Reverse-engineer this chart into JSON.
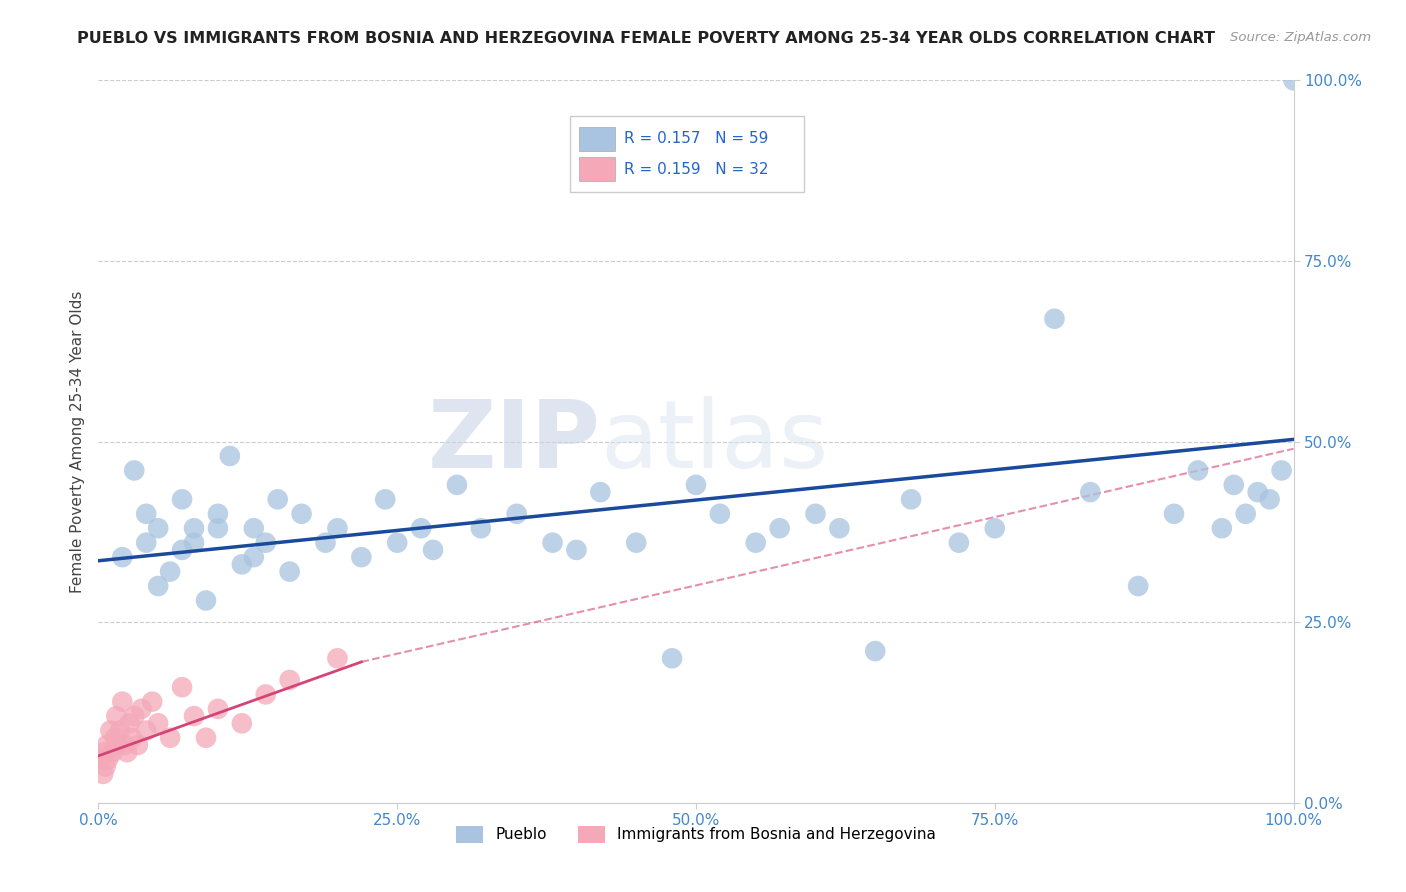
{
  "title": "PUEBLO VS IMMIGRANTS FROM BOSNIA AND HERZEGOVINA FEMALE POVERTY AMONG 25-34 YEAR OLDS CORRELATION CHART",
  "source": "Source: ZipAtlas.com",
  "ylabel": "Female Poverty Among 25-34 Year Olds",
  "watermark_zip": "ZIP",
  "watermark_atlas": "atlas",
  "xlim": [
    0,
    1
  ],
  "ylim": [
    0,
    1
  ],
  "xticks": [
    0.0,
    0.25,
    0.5,
    0.75,
    1.0
  ],
  "yticks": [
    0.0,
    0.25,
    0.5,
    0.75,
    1.0
  ],
  "xticklabels": [
    "0.0%",
    "25.0%",
    "50.0%",
    "75.0%",
    "100.0%"
  ],
  "yticklabels": [
    "0.0%",
    "25.0%",
    "50.0%",
    "75.0%",
    "100.0%"
  ],
  "pueblo_color": "#a8c4e0",
  "immigrant_color": "#f4a8b8",
  "trend_pueblo_color": "#1a4a9c",
  "trend_immigrant_color": "#d44477",
  "dashed_color": "#d44477",
  "background_color": "#ffffff",
  "grid_color": "#cccccc",
  "tick_color": "#4488cc",
  "legend_text_color": "#2266cc",
  "pueblo_x": [
    0.02,
    0.03,
    0.04,
    0.04,
    0.05,
    0.05,
    0.06,
    0.07,
    0.07,
    0.08,
    0.08,
    0.09,
    0.1,
    0.11,
    0.12,
    0.13,
    0.14,
    0.15,
    0.17,
    0.19,
    0.22,
    0.24,
    0.27,
    0.3,
    0.35,
    0.38,
    0.42,
    0.5,
    0.55,
    0.6,
    0.65,
    0.68,
    0.72,
    0.75,
    0.8,
    0.83,
    0.87,
    0.9,
    0.92,
    0.95,
    0.97,
    0.99,
    1.0,
    0.94,
    0.96,
    0.98,
    0.2,
    0.25,
    0.28,
    0.32,
    0.1,
    0.13,
    0.16,
    0.4,
    0.45,
    0.48,
    0.52,
    0.57,
    0.62
  ],
  "pueblo_y": [
    0.34,
    0.46,
    0.36,
    0.4,
    0.3,
    0.38,
    0.32,
    0.42,
    0.35,
    0.36,
    0.38,
    0.28,
    0.4,
    0.48,
    0.33,
    0.38,
    0.36,
    0.42,
    0.4,
    0.36,
    0.34,
    0.42,
    0.38,
    0.44,
    0.4,
    0.36,
    0.43,
    0.44,
    0.36,
    0.4,
    0.21,
    0.42,
    0.36,
    0.38,
    0.67,
    0.43,
    0.3,
    0.4,
    0.46,
    0.44,
    0.43,
    0.46,
    1.0,
    0.38,
    0.4,
    0.42,
    0.38,
    0.36,
    0.35,
    0.38,
    0.38,
    0.34,
    0.32,
    0.35,
    0.36,
    0.2,
    0.4,
    0.38,
    0.38
  ],
  "immigrant_x": [
    0.002,
    0.004,
    0.005,
    0.006,
    0.007,
    0.008,
    0.01,
    0.012,
    0.014,
    0.015,
    0.016,
    0.018,
    0.02,
    0.022,
    0.024,
    0.026,
    0.028,
    0.03,
    0.033,
    0.036,
    0.04,
    0.045,
    0.05,
    0.06,
    0.07,
    0.08,
    0.09,
    0.1,
    0.12,
    0.14,
    0.16,
    0.2
  ],
  "immigrant_y": [
    0.06,
    0.04,
    0.07,
    0.05,
    0.08,
    0.06,
    0.1,
    0.07,
    0.09,
    0.12,
    0.08,
    0.1,
    0.14,
    0.08,
    0.07,
    0.11,
    0.09,
    0.12,
    0.08,
    0.13,
    0.1,
    0.14,
    0.11,
    0.09,
    0.16,
    0.12,
    0.09,
    0.13,
    0.11,
    0.15,
    0.17,
    0.2
  ],
  "pueblo_trend_x": [
    0.0,
    1.0
  ],
  "pueblo_trend_y": [
    0.335,
    0.503
  ],
  "immigrant_trend_x": [
    0.0,
    0.22
  ],
  "immigrant_trend_y": [
    0.065,
    0.195
  ],
  "dashed_trend_x": [
    0.22,
    1.0
  ],
  "dashed_trend_y": [
    0.195,
    0.49
  ]
}
